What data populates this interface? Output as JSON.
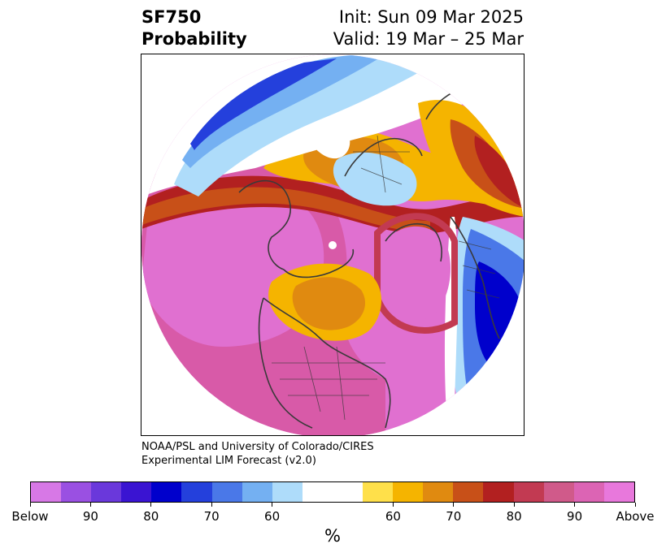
{
  "header": {
    "variable": "SF750",
    "subtitle": "Probability",
    "init": "Init: Sun 09 Mar 2025",
    "valid": "Valid: 19 Mar – 25 Mar"
  },
  "credit": {
    "line1": "NOAA/PSL and University of Colorado/CIRES",
    "line2": "Experimental LIM Forecast (v2.0)"
  },
  "colorbar": {
    "colors": [
      "#d778e6",
      "#9a50e2",
      "#6a38db",
      "#3a14d2",
      "#0000cc",
      "#2440dc",
      "#4a78e8",
      "#74b0f2",
      "#aedcfa",
      "#ffffff",
      "#ffffff",
      "#ffe04a",
      "#f5b400",
      "#e08a10",
      "#c85018",
      "#b22020",
      "#c23a52",
      "#d05a8a",
      "#dc64b4",
      "#e878dc"
    ],
    "tick_labels": [
      "Below",
      "90",
      "80",
      "70",
      "60",
      "60",
      "70",
      "80",
      "90",
      "Above"
    ],
    "unit": "%"
  },
  "map": {
    "projection": "north-polar-stereographic",
    "legend_colors": {
      "below_strong": "#0000cc",
      "below_weak": "#aedcfa",
      "above_mid": "#f5b400",
      "above_strong": "#b22020",
      "above_max": "#e878dc"
    }
  }
}
